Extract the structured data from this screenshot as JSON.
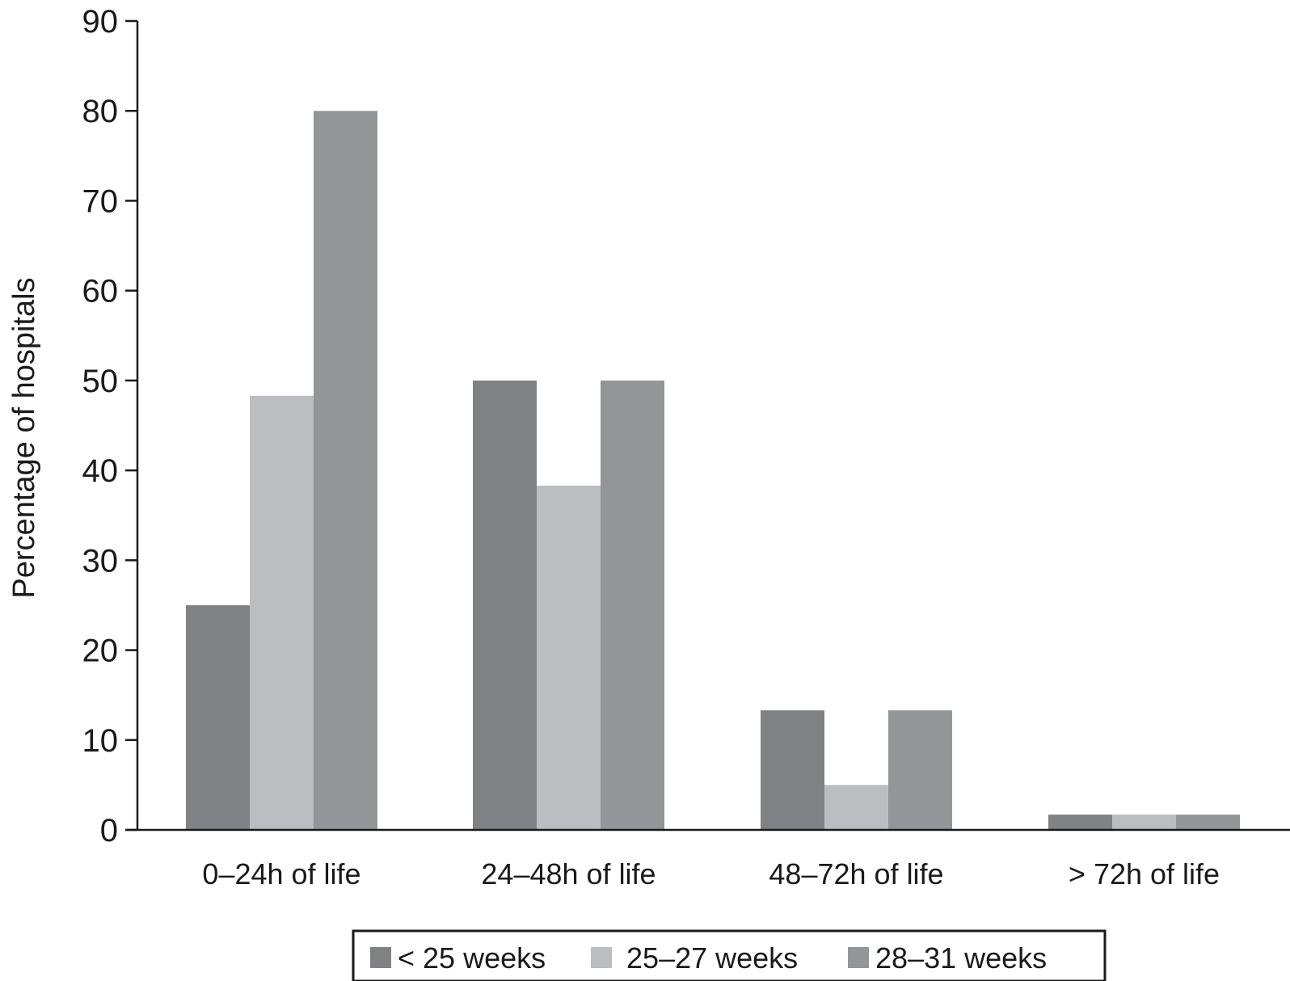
{
  "chart_data": {
    "type": "bar",
    "title": "",
    "xlabel": "",
    "ylabel": "Percentage of hospitals",
    "ylim": [
      0,
      90
    ],
    "yticks": [
      0,
      10,
      20,
      30,
      40,
      50,
      60,
      70,
      80,
      90
    ],
    "categories": [
      "0–24h of life",
      "24–48h of life",
      "48–72h of life",
      "> 72h of life"
    ],
    "series": [
      {
        "name": "< 25 weeks",
        "color": "#808184",
        "values": [
          25,
          50,
          13.3,
          1.7
        ]
      },
      {
        "name": "25–27 weeks",
        "color": "#bcbdc0",
        "values": [
          48.3,
          38.3,
          5,
          1.7
        ]
      },
      {
        "name": "28–31 weeks",
        "color": "#939699",
        "values": [
          80,
          50,
          13.3,
          1.7
        ]
      }
    ],
    "grid": false,
    "legend_position": "bottom"
  }
}
